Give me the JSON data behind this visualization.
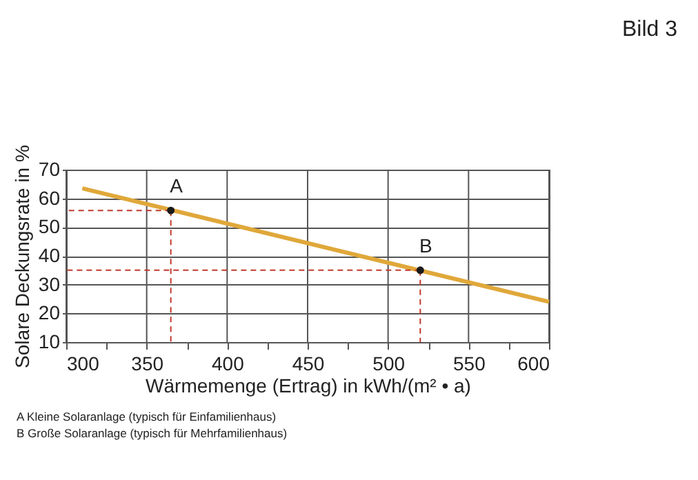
{
  "chart_data": {
    "type": "line",
    "title": "Bild 3",
    "xlabel": "Wärmemenge (Ertrag) in kWh/(m² • a)",
    "ylabel": "Solare Deckungsrate in %",
    "series": [
      {
        "color": "#e0a83a",
        "marker": "none",
        "x": [
          310,
          600
        ],
        "values": [
          63.5,
          24
        ]
      },
      {
        "type": "scatter",
        "color": "#1a1a1a",
        "marker": "circle",
        "x": [
          365,
          520
        ],
        "values": [
          55.8,
          35
        ]
      }
    ],
    "annotations": [
      {
        "text": "A",
        "x": 365,
        "y": 55.8
      },
      {
        "text": "B",
        "x": 520,
        "y": 35
      },
      "A     Kleine Solaranlage (typisch für Einfamilienhaus)",
      "B     Große Solaranlage (typisch für Mehrfamilienhaus)"
    ],
    "xlim": [
      300,
      600
    ],
    "ylim": [
      10,
      70
    ],
    "xticks": [
      300,
      {
        "value": 325,
        "label": null
      },
      350,
      {
        "value": 375,
        "label": null
      },
      400,
      {
        "value": 425,
        "label": null
      },
      450,
      {
        "value": 475,
        "label": null
      },
      500,
      {
        "value": 525,
        "label": null
      },
      550,
      {
        "value": 575,
        "label": null
      },
      600
    ],
    "yticks": [
      10,
      20,
      30,
      40,
      50,
      60,
      70
    ],
    "grid": true,
    "line_style": "solid"
  }
}
